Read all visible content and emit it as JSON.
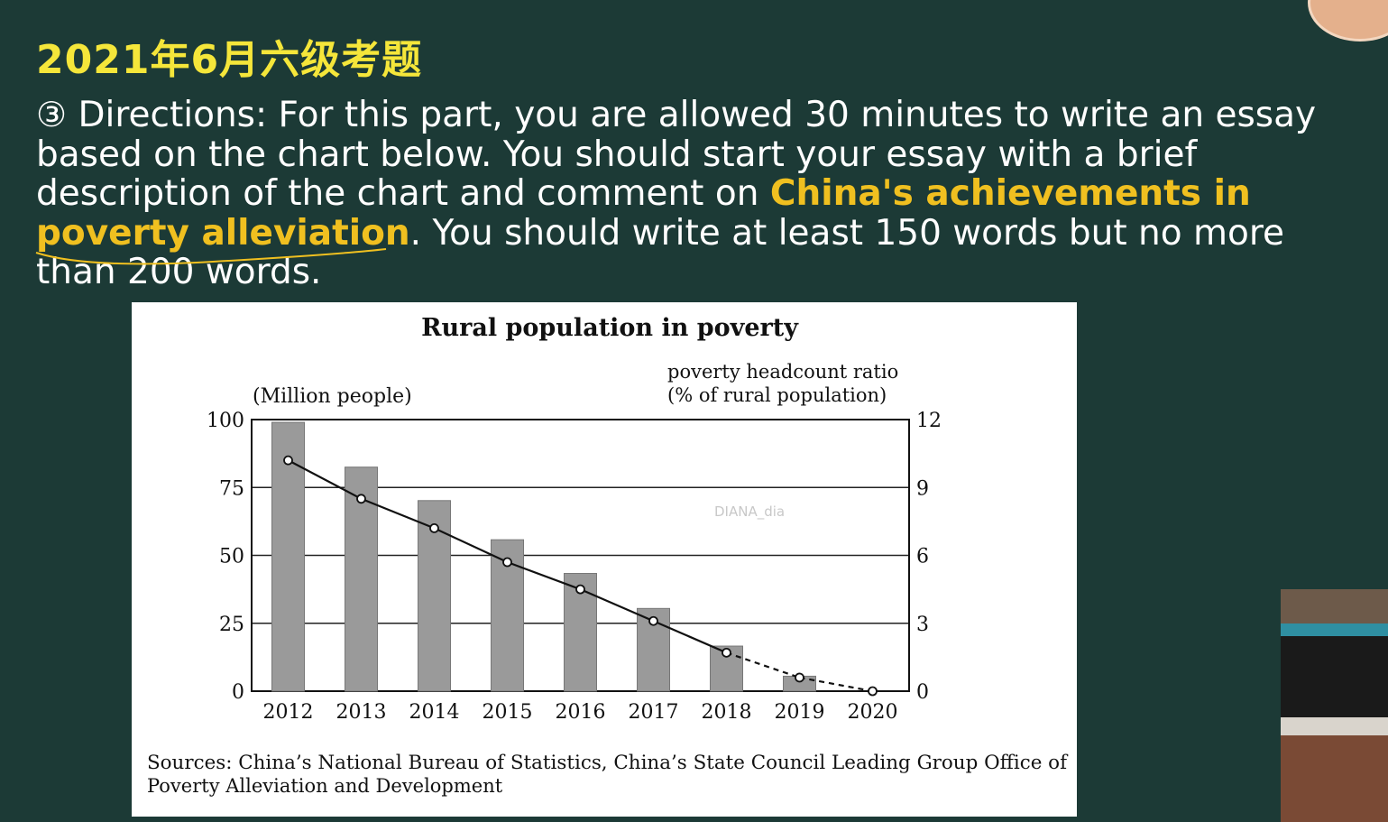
{
  "slide": {
    "title": "2021年6月六级考题",
    "circled_number": "③",
    "directions": {
      "part1": "Directions: For this part, you are allowed 30 minutes to write an essay based on the chart below. You should start your essay with a brief description of the chart and comment on ",
      "highlight": "China's achievements in poverty alleviation",
      "part2": ". You should write at least 150 words but no more than 200 words."
    },
    "watermark": "DIANA_dia"
  },
  "colors": {
    "background": "#1c3a36",
    "title": "#f5e63a",
    "highlight": "#f0c020",
    "bar_fill": "#9a9a9a"
  },
  "chart_data": {
    "type": "bar",
    "title": "Rural population in poverty",
    "ylabel": "(Million people)",
    "y2label_line1": "poverty headcount ratio",
    "y2label_line2": "(% of rural population)",
    "categories": [
      "2012",
      "2013",
      "2014",
      "2015",
      "2016",
      "2017",
      "2018",
      "2019",
      "2020"
    ],
    "ylim": [
      0,
      100
    ],
    "y2lim": [
      0,
      12
    ],
    "yticks": [
      "0",
      "25",
      "50",
      "75",
      "100"
    ],
    "y2ticks": [
      "0",
      "3",
      "6",
      "9",
      "12"
    ],
    "grid": true,
    "series": [
      {
        "values": [
          98.99,
          82.49,
          70.17,
          55.75,
          43.35,
          30.46,
          16.6,
          5.51,
          0
        ]
      },
      {
        "values": [
          10.2,
          8.5,
          7.2,
          5.7,
          4.5,
          3.1,
          1.7,
          0.6,
          0
        ],
        "dashed_from_index": 6
      }
    ],
    "source_line1": "Sources: China’s National Bureau of Statistics, China’s State Council Leading Group Office of",
    "source_line2": "Poverty Alleviation and Development"
  }
}
